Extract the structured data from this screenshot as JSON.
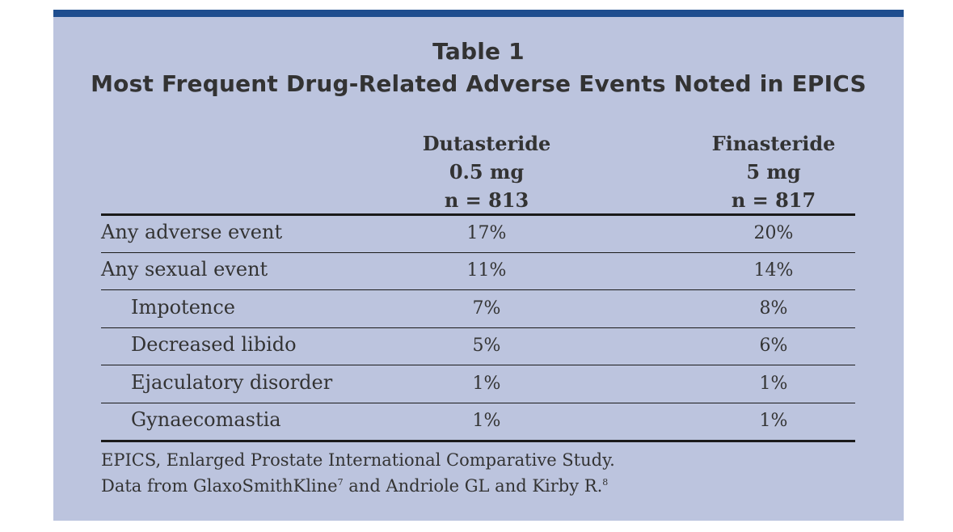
{
  "table": {
    "title": "Table 1",
    "subtitle": "Most Frequent Drug-Related Adverse Events Noted in EPICS",
    "columns": [
      {
        "drug": "Dutasteride",
        "dose": "0.5 mg",
        "n": "n = 813"
      },
      {
        "drug": "Finasteride",
        "dose": "5 mg",
        "n": "n = 817"
      }
    ],
    "rows": [
      {
        "label": "Any adverse event",
        "dutasteride": "17%",
        "finasteride": "20%"
      },
      {
        "label": "Any sexual event",
        "dutasteride": "11%",
        "finasteride": "14%"
      },
      {
        "label": "Impotence",
        "dutasteride": "7%",
        "finasteride": "8%"
      },
      {
        "label": "Decreased libido",
        "dutasteride": "5%",
        "finasteride": "6%"
      },
      {
        "label": "Ejaculatory disorder",
        "dutasteride": "1%",
        "finasteride": "1%"
      },
      {
        "label": "Gynaecomastia",
        "dutasteride": "1%",
        "finasteride": "1%"
      }
    ],
    "footnotes": {
      "line1": "EPICS, Enlarged Prostate International Comparative Study.",
      "line2_text": "Data from GlaxoSmithKline",
      "line2_ref1": "7",
      "line2_mid": " and Andriole GL and Kirby R.",
      "line2_ref2": "8"
    }
  },
  "colors": {
    "panel_background": "#bcc4de",
    "top_bar": "#1f4e8f",
    "text": "#333333"
  }
}
